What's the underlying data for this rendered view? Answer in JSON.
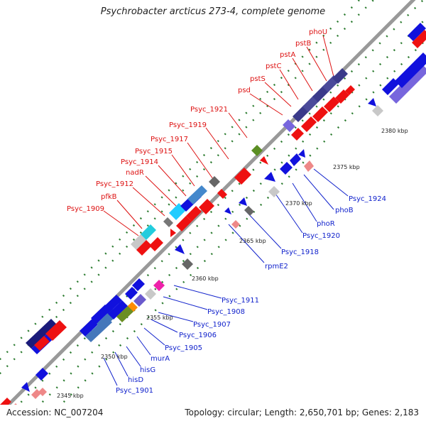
{
  "title": "Psychrobacter arcticus 273-4, complete genome",
  "footer": {
    "accession": "Accession: NC_007204",
    "topology": "Topology: circular; Length: 2,650,701 bp; Genes: 2,183"
  },
  "colors": {
    "forward_label": "#dd1111",
    "reverse_label": "#1122cc",
    "backbone": "#999999"
  },
  "axis_ticks": [
    "2345 kbp",
    "2350 kbp",
    "2355 kbp",
    "2360 kbp",
    "2365 kbp",
    "2370 kbp",
    "2375 kbp",
    "2380 kbp"
  ],
  "forward_genes": [
    "Psyc_1909",
    "pfkB",
    "Psyc_1912",
    "nadR",
    "Psyc_1914",
    "Psyc_1915",
    "Psyc_1917",
    "Psyc_1919",
    "Psyc_1921",
    "psd",
    "pstS",
    "pstC",
    "pstA",
    "pstB",
    "phoU"
  ],
  "reverse_genes": [
    "Psyc_1901",
    "hisD",
    "hisG",
    "murA",
    "Psyc_1905",
    "Psyc_1906",
    "Psyc_1907",
    "Psyc_1908",
    "Psyc_1911",
    "rpmE2",
    "Psyc_1918",
    "Psyc_1920",
    "phoR",
    "phoB",
    "Psyc_1924"
  ]
}
